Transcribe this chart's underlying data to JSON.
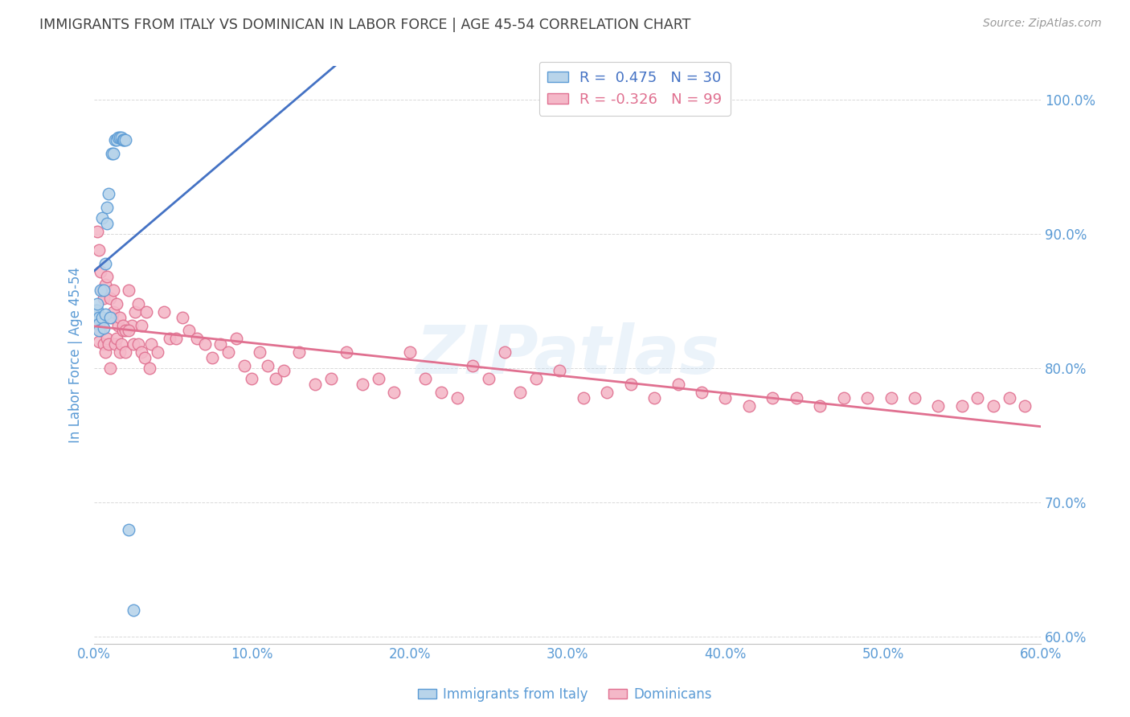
{
  "title": "IMMIGRANTS FROM ITALY VS DOMINICAN IN LABOR FORCE | AGE 45-54 CORRELATION CHART",
  "source": "Source: ZipAtlas.com",
  "xlabel_italy": "Immigrants from Italy",
  "xlabel_dominican": "Dominicans",
  "ylabel": "In Labor Force | Age 45-54",
  "watermark": "ZIPatlas",
  "italy_R": 0.475,
  "italy_N": 30,
  "dominican_R": -0.326,
  "dominican_N": 99,
  "xlim": [
    0.0,
    0.6
  ],
  "ylim": [
    0.595,
    1.025
  ],
  "yticks": [
    0.6,
    0.7,
    0.8,
    0.9,
    1.0
  ],
  "xticks": [
    0.0,
    0.1,
    0.2,
    0.3,
    0.4,
    0.5,
    0.6
  ],
  "italy_color": "#b8d4ea",
  "italy_edge_color": "#5b9bd5",
  "dominican_color": "#f4b8c8",
  "dominican_edge_color": "#e07090",
  "italy_line_color": "#4472c4",
  "dominican_line_color": "#e07090",
  "axis_color": "#5b9bd5",
  "grid_color": "#d0d0d0",
  "title_color": "#404040",
  "source_color": "#999999",
  "legend_R_color_italy": "#4472c4",
  "legend_R_color_dominican": "#e07090",
  "italy_x": [
    0.001,
    0.001,
    0.002,
    0.002,
    0.003,
    0.003,
    0.003,
    0.004,
    0.005,
    0.005,
    0.006,
    0.006,
    0.007,
    0.007,
    0.008,
    0.008,
    0.009,
    0.01,
    0.011,
    0.012,
    0.013,
    0.014,
    0.015,
    0.016,
    0.017,
    0.018,
    0.019,
    0.02,
    0.022,
    0.025
  ],
  "italy_y": [
    0.838,
    0.843,
    0.843,
    0.848,
    0.838,
    0.833,
    0.828,
    0.858,
    0.838,
    0.912,
    0.858,
    0.83,
    0.84,
    0.878,
    0.92,
    0.908,
    0.93,
    0.838,
    0.96,
    0.96,
    0.97,
    0.97,
    0.972,
    0.972,
    0.972,
    0.97,
    0.97,
    0.97,
    0.68,
    0.62
  ],
  "dominican_x": [
    0.002,
    0.003,
    0.004,
    0.005,
    0.006,
    0.007,
    0.008,
    0.009,
    0.01,
    0.011,
    0.012,
    0.013,
    0.014,
    0.015,
    0.016,
    0.017,
    0.018,
    0.02,
    0.022,
    0.024,
    0.026,
    0.028,
    0.03,
    0.033,
    0.036,
    0.04,
    0.044,
    0.048,
    0.052,
    0.056,
    0.06,
    0.065,
    0.07,
    0.075,
    0.08,
    0.085,
    0.09,
    0.095,
    0.1,
    0.105,
    0.11,
    0.115,
    0.12,
    0.13,
    0.14,
    0.15,
    0.16,
    0.17,
    0.18,
    0.19,
    0.2,
    0.21,
    0.22,
    0.23,
    0.24,
    0.25,
    0.26,
    0.27,
    0.28,
    0.295,
    0.31,
    0.325,
    0.34,
    0.355,
    0.37,
    0.385,
    0.4,
    0.415,
    0.43,
    0.445,
    0.46,
    0.475,
    0.49,
    0.505,
    0.52,
    0.535,
    0.55,
    0.56,
    0.57,
    0.58,
    0.59,
    0.002,
    0.003,
    0.004,
    0.005,
    0.006,
    0.007,
    0.008,
    0.01,
    0.012,
    0.014,
    0.016,
    0.018,
    0.02,
    0.022,
    0.025,
    0.028,
    0.03,
    0.032,
    0.035
  ],
  "dominican_y": [
    0.838,
    0.82,
    0.828,
    0.833,
    0.818,
    0.812,
    0.822,
    0.818,
    0.8,
    0.838,
    0.842,
    0.818,
    0.822,
    0.832,
    0.812,
    0.818,
    0.828,
    0.812,
    0.858,
    0.832,
    0.842,
    0.848,
    0.832,
    0.842,
    0.818,
    0.812,
    0.842,
    0.822,
    0.822,
    0.838,
    0.828,
    0.822,
    0.818,
    0.808,
    0.818,
    0.812,
    0.822,
    0.802,
    0.792,
    0.812,
    0.802,
    0.792,
    0.798,
    0.812,
    0.788,
    0.792,
    0.812,
    0.788,
    0.792,
    0.782,
    0.812,
    0.792,
    0.782,
    0.778,
    0.802,
    0.792,
    0.812,
    0.782,
    0.792,
    0.798,
    0.778,
    0.782,
    0.788,
    0.778,
    0.788,
    0.782,
    0.778,
    0.772,
    0.778,
    0.778,
    0.772,
    0.778,
    0.778,
    0.778,
    0.778,
    0.772,
    0.772,
    0.778,
    0.772,
    0.778,
    0.772,
    0.902,
    0.888,
    0.872,
    0.858,
    0.852,
    0.862,
    0.868,
    0.852,
    0.858,
    0.848,
    0.838,
    0.832,
    0.828,
    0.828,
    0.818,
    0.818,
    0.812,
    0.808,
    0.8
  ]
}
